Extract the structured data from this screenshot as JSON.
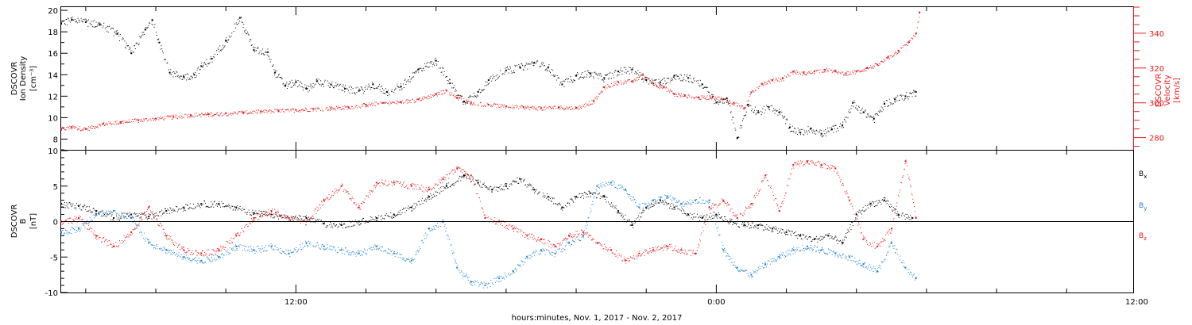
{
  "colors": {
    "black": "#000000",
    "red": "#e8191b",
    "blue": "#1a7fd4"
  },
  "xaxis": {
    "label": "hours:minutes, Nov.  1, 2017 - Nov.  2, 2017",
    "range_hours": [
      5.3,
      35.9
    ],
    "ticks": [
      {
        "hour": 12,
        "label": "12:00"
      },
      {
        "hour": 24,
        "label": "0:00"
      },
      {
        "hour": 36,
        "label": "12:00"
      }
    ],
    "minor_tick_step_hours": 2,
    "data_end_hour": 29.8
  },
  "chart_data": [
    {
      "type": "scatter",
      "panel": "density-velocity",
      "left_axis": {
        "label_lines": [
          "DSCOVR",
          "Ion Density",
          "[cm⁻³]"
        ],
        "range": [
          7.0,
          20.3
        ],
        "ticks": [
          8,
          10,
          12,
          14,
          16,
          18,
          20
        ]
      },
      "right_axis": {
        "label_lines": [
          "DSCOVR",
          "Velocity",
          "[km/s]"
        ],
        "range": [
          273,
          355
        ],
        "ticks": [
          280,
          300,
          320,
          340
        ]
      },
      "series": [
        {
          "name": "Ion Density",
          "axis": "left",
          "color_key": "black",
          "x": [
            5.3,
            5.6,
            6.0,
            6.4,
            6.9,
            7.3,
            7.7,
            7.9,
            8.1,
            8.4,
            8.8,
            9.1,
            9.3,
            9.6,
            10.0,
            10.4,
            10.8,
            11.2,
            11.4,
            11.7,
            12.0,
            12.3,
            12.6,
            13.0,
            13.4,
            13.8,
            14.2,
            14.6,
            15.0,
            15.5,
            16.0,
            16.4,
            16.8,
            17.2,
            17.5,
            18.0,
            18.4,
            18.8,
            19.2,
            19.6,
            20.0,
            20.4,
            20.8,
            21.2,
            21.6,
            22.0,
            22.4,
            22.8,
            23.2,
            23.6,
            24.0,
            24.3,
            24.6,
            24.9,
            25.2,
            25.5,
            25.8,
            26.1,
            26.4,
            26.7,
            27.0,
            27.3,
            27.6,
            27.9,
            28.2,
            28.5,
            28.8,
            29.1,
            29.4,
            29.7
          ],
          "y": [
            18.8,
            19.1,
            18.9,
            18.7,
            17.8,
            16.0,
            18.2,
            19.1,
            17.0,
            14.2,
            13.8,
            14.0,
            14.8,
            15.5,
            17.2,
            19.3,
            16.3,
            16.1,
            14.2,
            13.0,
            13.3,
            12.7,
            13.4,
            13.1,
            12.7,
            12.5,
            13.1,
            12.4,
            12.9,
            14.5,
            15.3,
            13.2,
            11.5,
            12.4,
            13.5,
            14.4,
            14.7,
            15.1,
            14.7,
            13.1,
            13.9,
            14.1,
            13.7,
            14.3,
            14.5,
            13.5,
            13.3,
            13.9,
            13.7,
            13.1,
            11.4,
            11.8,
            8.1,
            11.2,
            10.5,
            11.0,
            10.5,
            9.1,
            8.6,
            9.0,
            8.5,
            8.9,
            9.3,
            11.4,
            10.5,
            9.9,
            11.3,
            11.7,
            12.0,
            12.4
          ]
        },
        {
          "name": "Velocity",
          "axis": "right",
          "color_key": "red",
          "x": [
            5.3,
            5.6,
            6.0,
            6.5,
            7.0,
            7.5,
            8.0,
            8.5,
            9.0,
            9.5,
            10.0,
            10.5,
            11.0,
            11.5,
            12.0,
            12.5,
            13.0,
            13.5,
            14.0,
            14.5,
            15.0,
            15.5,
            16.0,
            16.3,
            16.6,
            17.0,
            17.5,
            18.0,
            18.5,
            19.0,
            19.5,
            20.0,
            20.5,
            20.8,
            21.2,
            21.6,
            21.9,
            22.2,
            22.5,
            22.8,
            23.1,
            23.5,
            23.9,
            24.2,
            24.5,
            24.8,
            25.0,
            25.3,
            25.6,
            25.9,
            26.2,
            26.5,
            26.8,
            27.1,
            27.4,
            27.7,
            28.0,
            28.3,
            28.6,
            28.9,
            29.2,
            29.5,
            29.7,
            29.8
          ],
          "y": [
            285,
            286,
            285,
            288,
            289,
            290,
            291,
            292,
            293,
            293.5,
            294,
            294.5,
            295,
            295.5,
            296,
            296.5,
            297,
            297.5,
            299,
            300,
            300.5,
            302,
            305,
            307,
            303,
            300,
            299,
            298,
            297.5,
            297,
            297.5,
            297,
            301,
            309,
            312,
            312.5,
            316,
            311,
            309,
            305,
            304,
            303,
            303.5,
            302,
            300,
            297,
            306,
            311,
            313,
            314,
            318,
            317,
            318,
            319,
            318,
            317,
            318,
            320,
            322,
            326,
            330,
            335,
            340,
            352
          ]
        }
      ]
    },
    {
      "type": "scatter",
      "panel": "magnetic-field",
      "left_axis": {
        "label_lines": [
          "DSCOVR",
          "B",
          "[nT]"
        ],
        "range": [
          -10,
          10
        ],
        "ticks": [
          -10,
          -5,
          0,
          5,
          10
        ]
      },
      "zero_line": true,
      "series": [
        {
          "name": "Bx",
          "legend_main": "B",
          "legend_sub": "x",
          "color_key": "black",
          "x": [
            5.3,
            5.8,
            6.3,
            6.8,
            7.3,
            7.8,
            8.3,
            8.8,
            9.3,
            9.8,
            10.3,
            10.8,
            11.3,
            11.8,
            12.3,
            12.8,
            13.3,
            13.8,
            14.3,
            14.8,
            15.3,
            15.8,
            16.3,
            16.8,
            17.2,
            17.6,
            18.0,
            18.4,
            18.8,
            19.2,
            19.6,
            20.0,
            20.4,
            20.8,
            21.2,
            21.6,
            22.0,
            22.4,
            22.8,
            23.2,
            23.6,
            24.0,
            24.4,
            24.8,
            25.2,
            25.6,
            26.0,
            26.4,
            26.8,
            27.2,
            27.6,
            28.0,
            28.4,
            28.8,
            29.2,
            29.6
          ],
          "y": [
            2.5,
            2.2,
            1.5,
            0.5,
            1.0,
            0.7,
            1.5,
            2.0,
            2.5,
            2.5,
            2.0,
            1.2,
            1.0,
            0.5,
            0.5,
            -0.3,
            -0.5,
            0.0,
            0.5,
            1.0,
            2.0,
            3.5,
            5.0,
            6.5,
            5.5,
            4.5,
            5.0,
            6.0,
            4.5,
            3.5,
            2.0,
            3.5,
            4.0,
            3.5,
            1.5,
            -0.5,
            2.0,
            3.0,
            2.0,
            1.0,
            0.5,
            1.0,
            0.0,
            -0.5,
            -0.5,
            -1.0,
            -1.5,
            -2.0,
            -2.5,
            -2.0,
            -3.0,
            1.0,
            2.5,
            3.0,
            1.0,
            0.5
          ]
        },
        {
          "name": "By",
          "legend_main": "B",
          "legend_sub": "y",
          "color_key": "blue",
          "x": [
            5.3,
            5.8,
            6.3,
            6.8,
            7.3,
            7.8,
            8.3,
            8.8,
            9.3,
            9.8,
            10.3,
            10.8,
            11.3,
            11.8,
            12.3,
            12.8,
            13.3,
            13.8,
            14.3,
            14.8,
            15.3,
            15.8,
            16.2,
            16.6,
            17.0,
            17.4,
            17.8,
            18.2,
            18.6,
            19.0,
            19.4,
            19.8,
            20.2,
            20.6,
            21.0,
            21.4,
            21.8,
            22.2,
            22.6,
            23.0,
            23.4,
            23.8,
            24.2,
            24.6,
            25.0,
            25.4,
            25.8,
            26.2,
            26.6,
            27.0,
            27.4,
            27.8,
            28.2,
            28.6,
            29.0,
            29.4,
            29.7
          ],
          "y": [
            -1.5,
            -1.0,
            1.0,
            1.5,
            0.5,
            -3.0,
            -4.0,
            -5.0,
            -5.5,
            -5.0,
            -3.5,
            -4.0,
            -3.5,
            -4.5,
            -3.0,
            -3.5,
            -4.0,
            -4.5,
            -3.5,
            -4.5,
            -5.5,
            -1.0,
            0.0,
            -6.5,
            -8.5,
            -9.0,
            -8.0,
            -7.0,
            -5.0,
            -4.0,
            -4.5,
            -3.0,
            -2.0,
            5.0,
            5.5,
            4.5,
            2.0,
            3.0,
            3.5,
            2.5,
            3.0,
            3.0,
            -4.0,
            -6.5,
            -7.5,
            -6.0,
            -5.0,
            -4.0,
            -3.5,
            -4.0,
            -4.5,
            -5.0,
            -6.0,
            -7.0,
            -3.0,
            -6.5,
            -8.0
          ]
        },
        {
          "name": "Bz",
          "legend_main": "B",
          "legend_sub": "z",
          "color_key": "red",
          "x": [
            5.3,
            5.8,
            6.3,
            6.8,
            7.3,
            7.8,
            8.3,
            8.8,
            9.3,
            9.8,
            10.3,
            10.8,
            11.3,
            11.8,
            12.3,
            12.8,
            13.3,
            13.8,
            14.3,
            14.8,
            15.3,
            15.8,
            16.2,
            16.6,
            17.0,
            17.4,
            17.8,
            18.2,
            18.6,
            19.0,
            19.4,
            19.8,
            20.2,
            20.6,
            21.0,
            21.4,
            21.8,
            22.2,
            22.6,
            23.0,
            23.4,
            23.8,
            24.2,
            24.6,
            25.0,
            25.4,
            25.8,
            26.2,
            26.6,
            27.0,
            27.4,
            27.8,
            28.2,
            28.6,
            29.0,
            29.4,
            29.7
          ],
          "y": [
            0.0,
            0.5,
            -2.0,
            -3.5,
            -1.5,
            2.0,
            -2.0,
            -4.0,
            -4.5,
            -4.0,
            -2.0,
            0.5,
            1.5,
            0.5,
            0.0,
            3.0,
            5.0,
            2.0,
            5.5,
            5.5,
            5.0,
            4.5,
            6.0,
            7.5,
            6.5,
            0.5,
            0.0,
            -1.0,
            -2.0,
            -2.5,
            -3.5,
            -2.0,
            -1.5,
            -3.0,
            -4.0,
            -5.5,
            -4.5,
            -4.0,
            -3.5,
            -4.0,
            -4.5,
            2.0,
            3.0,
            0.5,
            2.5,
            6.5,
            1.5,
            8.0,
            8.5,
            8.0,
            7.5,
            3.0,
            -2.5,
            -3.5,
            -1.0,
            8.5,
            0.5
          ]
        }
      ]
    }
  ]
}
